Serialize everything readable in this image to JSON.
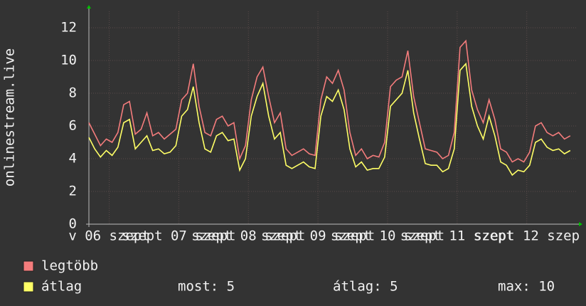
{
  "chart_data": {
    "type": "line",
    "y_label": "onlinestream.live",
    "x": [
      0,
      2,
      4,
      6,
      8,
      10,
      12,
      14,
      16,
      18,
      20,
      22,
      24,
      26,
      28,
      30,
      32,
      34,
      36,
      38,
      40,
      42,
      44,
      46,
      48,
      50,
      52,
      54,
      56,
      58,
      60,
      62,
      64,
      66,
      68,
      70,
      72,
      74,
      76,
      78,
      80,
      82,
      84,
      86,
      88,
      90,
      92,
      94,
      96,
      98,
      100,
      102,
      104,
      106,
      108,
      110,
      112,
      114,
      116,
      118,
      120,
      122,
      124,
      126,
      128,
      130,
      132,
      134,
      136,
      138,
      140,
      142,
      144,
      146,
      148,
      150,
      152,
      154,
      156,
      158,
      160,
      162,
      164,
      166
    ],
    "xlim": [
      0,
      168
    ],
    "xticks": [
      {
        "value": 7,
        "label": "v 06 szept"
      },
      {
        "value": 31,
        "label": "szept 07 szept"
      },
      {
        "value": 55,
        "label": "szept 08 szept"
      },
      {
        "value": 79,
        "label": "szept 09 szept"
      },
      {
        "value": 103,
        "label": "szept 10 szept"
      },
      {
        "value": 127,
        "label": "szept 11 szept"
      },
      {
        "value": 151,
        "label": "szept 12 szep"
      }
    ],
    "ylim": [
      0,
      13
    ],
    "yticks": [
      0,
      2,
      4,
      6,
      8,
      10,
      12
    ],
    "grid": true,
    "series": [
      {
        "name": "legtöbb",
        "color": "#f47c7c",
        "values": [
          6.2,
          5.5,
          4.8,
          5.2,
          5.0,
          5.6,
          7.3,
          7.5,
          5.5,
          5.8,
          6.8,
          5.4,
          5.6,
          5.2,
          5.5,
          5.8,
          7.6,
          8.0,
          9.8,
          7.2,
          5.6,
          5.4,
          6.4,
          6.6,
          6.0,
          6.2,
          4.0,
          4.8,
          7.6,
          9.0,
          9.6,
          7.8,
          6.2,
          6.8,
          4.6,
          4.2,
          4.4,
          4.6,
          4.3,
          4.2,
          7.6,
          9.0,
          8.6,
          9.4,
          8.2,
          5.6,
          4.2,
          4.6,
          4.0,
          4.2,
          4.1,
          5.0,
          8.4,
          8.8,
          9.0,
          10.6,
          7.8,
          6.2,
          4.6,
          4.5,
          4.4,
          4.0,
          4.2,
          5.6,
          10.8,
          11.2,
          8.2,
          7.0,
          6.2,
          7.6,
          6.4,
          4.6,
          4.4,
          3.8,
          4.0,
          3.8,
          4.4,
          6.0,
          6.2,
          5.6,
          5.4,
          5.6,
          5.2,
          5.4
        ]
      },
      {
        "name": "átlag",
        "color": "#ffff66",
        "values": [
          5.3,
          4.6,
          4.1,
          4.5,
          4.2,
          4.7,
          6.2,
          6.4,
          4.6,
          5.0,
          5.4,
          4.5,
          4.6,
          4.3,
          4.4,
          4.8,
          6.6,
          7.0,
          8.4,
          6.2,
          4.6,
          4.4,
          5.4,
          5.6,
          5.1,
          5.2,
          3.3,
          4.0,
          6.6,
          7.8,
          8.6,
          6.6,
          5.2,
          5.6,
          3.6,
          3.4,
          3.6,
          3.8,
          3.5,
          3.4,
          6.6,
          7.8,
          7.5,
          8.2,
          7.0,
          4.6,
          3.5,
          3.8,
          3.3,
          3.4,
          3.4,
          4.1,
          7.2,
          7.6,
          8.0,
          9.4,
          6.8,
          5.2,
          3.7,
          3.6,
          3.6,
          3.2,
          3.4,
          4.6,
          9.4,
          9.8,
          7.2,
          6.0,
          5.2,
          6.6,
          5.4,
          3.8,
          3.6,
          3.0,
          3.3,
          3.2,
          3.6,
          5.0,
          5.2,
          4.7,
          4.5,
          4.6,
          4.3,
          4.5
        ]
      }
    ],
    "legend_stats": [
      "most: 5",
      "átlag: 5",
      "max: 10"
    ]
  }
}
